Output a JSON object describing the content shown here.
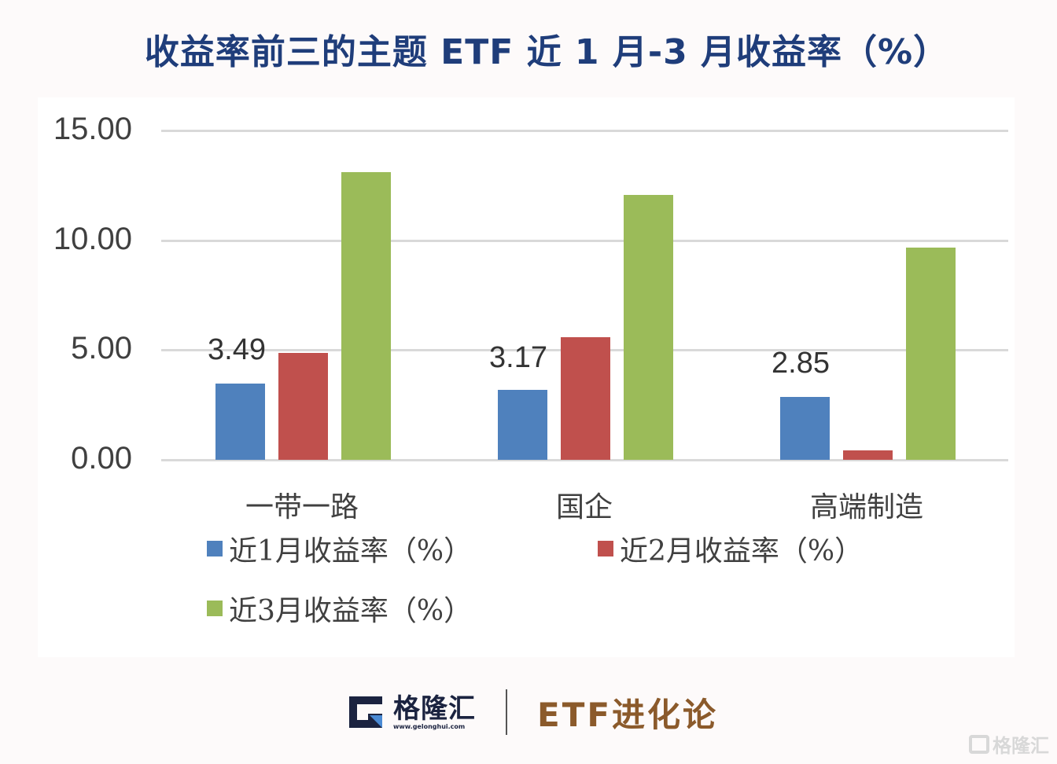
{
  "title": "收益率前三的主题 ETF 近 1 月-3 月收益率（%）",
  "chart_data": {
    "type": "bar",
    "title": "收益率前三的主题 ETF 近 1 月-3 月收益率（%）",
    "xlabel": "",
    "ylabel": "",
    "categories": [
      "一带一路",
      "国企",
      "高端制造"
    ],
    "series": [
      {
        "name": "近1月收益率（%）",
        "color": "#4f81bd",
        "values": [
          3.49,
          3.17,
          2.85
        ]
      },
      {
        "name": "近2月收益率（%）",
        "color": "#c0504d",
        "values": [
          4.86,
          5.57,
          0.43
        ]
      },
      {
        "name": "近3月收益率（%）",
        "color": "#9bbb59",
        "values": [
          13.1,
          12.07,
          9.68
        ]
      }
    ],
    "data_labels": [
      {
        "category": "一带一路",
        "series": "近1月收益率（%）",
        "text": "3.49"
      },
      {
        "category": "国企",
        "series": "近1月收益率（%）",
        "text": "3.17"
      },
      {
        "category": "高端制造",
        "series": "近1月收益率（%）",
        "text": "2.85"
      }
    ],
    "yticks": [
      "0.00",
      "5.00",
      "10.00",
      "15.00"
    ],
    "ylim": [
      0,
      15
    ],
    "grid": true,
    "legend_position": "bottom"
  },
  "footer": {
    "logo_name": "格隆汇",
    "logo_url": "www.gelonghui.com",
    "brand": "ETF进化论"
  },
  "watermark": "格隆汇"
}
